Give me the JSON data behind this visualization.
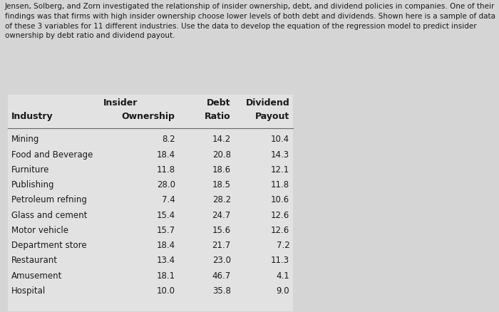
{
  "paragraph": "Jensen, Solberg, and Zorn investigated the relationship of insider ownership, debt, and dividend policies in companies. One of their findings was that firms with high insider ownership choose lower levels of both debt and dividends. Shown here is a sample of data of these 3 variables for 11 different industries. Use the data to develop the equation of the regression model to predict insider ownership by debt ratio and dividend payout.",
  "header_row1": [
    "",
    "Insider",
    "Debt",
    "Dividend"
  ],
  "header_row2": [
    "Industry",
    "Ownership",
    "Ratio",
    "Payout"
  ],
  "industries": [
    "Mining",
    "Food and Beverage",
    "Furniture",
    "Publishing",
    "Petroleum refning",
    "Glass and cement",
    "Motor vehicle",
    "Department store",
    "Restaurant",
    "Amusement",
    "Hospital"
  ],
  "insider_ownership": [
    8.2,
    18.4,
    11.8,
    28.0,
    7.4,
    15.4,
    15.7,
    18.4,
    13.4,
    18.1,
    10.0
  ],
  "debt_ratio": [
    14.2,
    20.8,
    18.6,
    18.5,
    28.2,
    24.7,
    15.6,
    21.7,
    23.0,
    46.7,
    35.8
  ],
  "dividend_payout": [
    10.4,
    14.3,
    12.1,
    11.8,
    10.6,
    12.6,
    12.6,
    7.2,
    11.3,
    4.1,
    9.0
  ],
  "bg_color": "#d5d5d5",
  "table_bg": "#e2e2e2",
  "text_color": "#1a1a1a",
  "font_size_para": 7.5,
  "font_size_table": 9.0
}
